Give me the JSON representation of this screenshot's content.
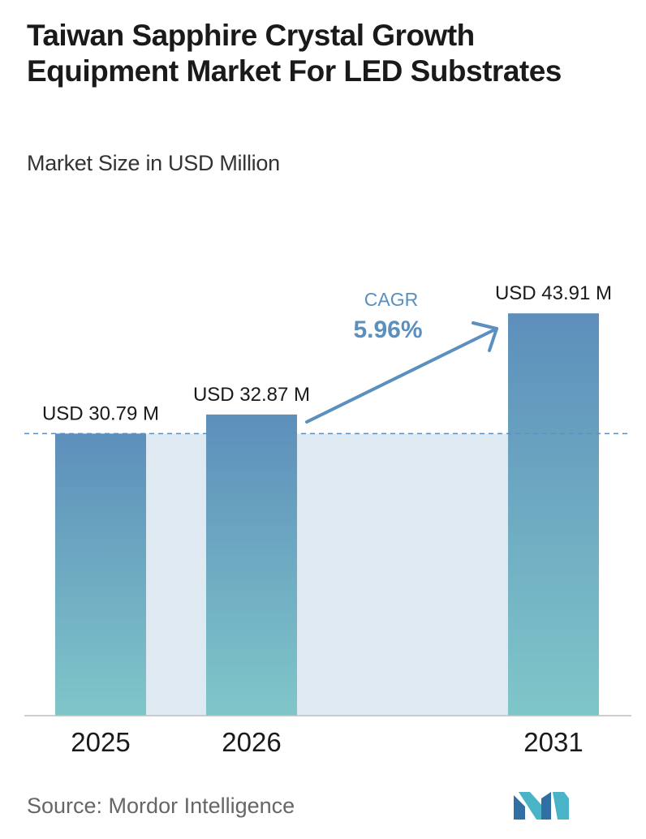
{
  "header": {
    "title": "Taiwan Sapphire Crystal Growth Equipment Market For LED Substrates",
    "subtitle": "Market Size in USD Million"
  },
  "chart_data": {
    "type": "bar",
    "categories": [
      "2025",
      "2026",
      "2031"
    ],
    "values": [
      30.79,
      32.87,
      43.91
    ],
    "value_labels": [
      "USD 30.79 M",
      "USD 32.87 M",
      "USD 43.91 M"
    ],
    "ylim": [
      0,
      48
    ],
    "grid": false,
    "reference_line_value": 30.79,
    "cagr": {
      "label": "CAGR",
      "value": "5.96%"
    },
    "colors": {
      "bar_top": "#5d8fbb",
      "bar_bottom": "#7fc6c9",
      "band": "#dfe9f2",
      "accent": "#5b8fbf"
    }
  },
  "footer": {
    "source": "Source:  Mordor Intelligence",
    "logo_icon": "mordor-intelligence-logo-icon"
  }
}
